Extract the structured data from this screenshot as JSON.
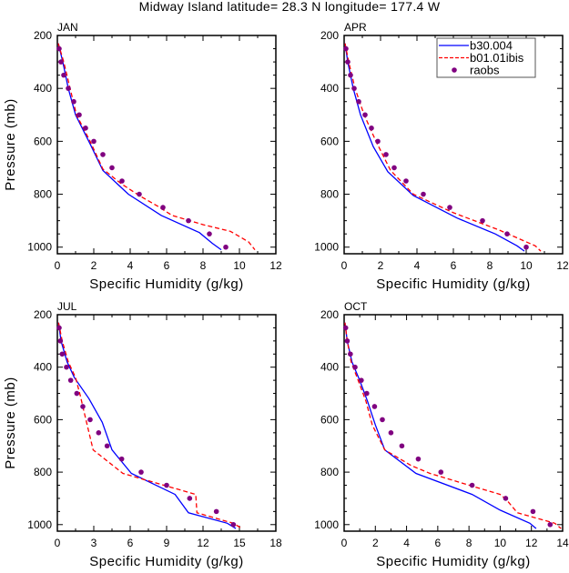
{
  "title": "Midway Island  latitude= 28.3 N longitude= 177.4 W",
  "colors": {
    "b30.004": "#0000ff",
    "b01.01ibis": "#ff0000",
    "raobs": "#800080"
  },
  "legend": {
    "placement": "top-right of APR panel",
    "entries": [
      {
        "label": "b30.004",
        "style": "solid line"
      },
      {
        "label": "b01.01ibis",
        "style": "dashed line"
      },
      {
        "label": "raobs",
        "style": "dot marker"
      }
    ]
  },
  "chart_data": [
    {
      "type": "line",
      "panel_label": "JAN",
      "xlabel": "Specific Humidity (g/kg)",
      "ylabel": "Pressure (mb)",
      "xlim": [
        0,
        12
      ],
      "xticks": [
        0,
        2,
        4,
        6,
        8,
        10,
        12
      ],
      "xminor": 1,
      "ylim": [
        1025,
        200
      ],
      "yticks": [
        200,
        400,
        600,
        800,
        1000
      ],
      "yminor": 50,
      "grid": false,
      "series": [
        {
          "name": "b30.004",
          "kind": "solid",
          "points": [
            [
              0.05,
              230
            ],
            [
              0.3,
              300
            ],
            [
              0.6,
              400
            ],
            [
              1.0,
              500
            ],
            [
              1.8,
              610
            ],
            [
              2.5,
              710
            ],
            [
              3.9,
              800
            ],
            [
              5.7,
              880
            ],
            [
              7.8,
              945
            ],
            [
              8.5,
              985
            ],
            [
              9.0,
              1010
            ]
          ]
        },
        {
          "name": "b01.01ibis",
          "kind": "dashed",
          "points": [
            [
              0.05,
              230
            ],
            [
              0.35,
              300
            ],
            [
              0.7,
              400
            ],
            [
              1.05,
              500
            ],
            [
              1.8,
              600
            ],
            [
              2.5,
              705
            ],
            [
              3.5,
              760
            ],
            [
              4.5,
              805
            ],
            [
              5.5,
              845
            ],
            [
              6.3,
              880
            ],
            [
              8.0,
              915
            ],
            [
              9.5,
              940
            ],
            [
              10.5,
              980
            ],
            [
              10.85,
              1010
            ]
          ]
        },
        {
          "name": "raobs",
          "kind": "markers",
          "points": [
            [
              0.1,
              250
            ],
            [
              0.2,
              300
            ],
            [
              0.35,
              350
            ],
            [
              0.6,
              400
            ],
            [
              0.9,
              450
            ],
            [
              1.2,
              500
            ],
            [
              1.55,
              550
            ],
            [
              2.0,
              600
            ],
            [
              2.5,
              650
            ],
            [
              3.0,
              700
            ],
            [
              3.55,
              750
            ],
            [
              4.5,
              800
            ],
            [
              5.8,
              850
            ],
            [
              7.2,
              900
            ],
            [
              8.35,
              950
            ],
            [
              9.25,
              1000
            ]
          ]
        }
      ]
    },
    {
      "type": "line",
      "panel_label": "APR",
      "xlabel": "Specific Humidity (g/kg)",
      "ylabel": "",
      "xlim": [
        0,
        12
      ],
      "xticks": [
        0,
        2,
        4,
        6,
        8,
        10,
        12
      ],
      "xminor": 1,
      "ylim": [
        1025,
        200
      ],
      "yticks": [
        200,
        400,
        600,
        800,
        1000
      ],
      "yminor": 50,
      "grid": false,
      "series": [
        {
          "name": "b30.004",
          "kind": "solid",
          "points": [
            [
              0.05,
              230
            ],
            [
              0.2,
              300
            ],
            [
              0.5,
              400
            ],
            [
              0.9,
              500
            ],
            [
              1.6,
              620
            ],
            [
              2.4,
              715
            ],
            [
              3.8,
              805
            ],
            [
              6.2,
              890
            ],
            [
              8.3,
              950
            ],
            [
              9.5,
              995
            ],
            [
              9.9,
              1015
            ]
          ]
        },
        {
          "name": "b01.01ibis",
          "kind": "dashed",
          "points": [
            [
              0.05,
              230
            ],
            [
              0.25,
              300
            ],
            [
              0.6,
              400
            ],
            [
              1.1,
              500
            ],
            [
              1.75,
              600
            ],
            [
              2.55,
              710
            ],
            [
              3.8,
              800
            ],
            [
              6.0,
              870
            ],
            [
              8.5,
              935
            ],
            [
              10.5,
              995
            ],
            [
              10.8,
              1015
            ]
          ]
        },
        {
          "name": "raobs",
          "kind": "markers",
          "points": [
            [
              0.1,
              250
            ],
            [
              0.2,
              300
            ],
            [
              0.35,
              350
            ],
            [
              0.55,
              400
            ],
            [
              0.8,
              450
            ],
            [
              1.15,
              500
            ],
            [
              1.5,
              550
            ],
            [
              1.85,
              600
            ],
            [
              2.3,
              650
            ],
            [
              2.75,
              700
            ],
            [
              3.4,
              750
            ],
            [
              4.35,
              800
            ],
            [
              5.8,
              850
            ],
            [
              7.6,
              900
            ],
            [
              8.95,
              950
            ],
            [
              10.0,
              1000
            ]
          ]
        }
      ]
    },
    {
      "type": "line",
      "panel_label": "JUL",
      "xlabel": "Specific Humidity (g/kg)",
      "ylabel": "Pressure (mb)",
      "xlim": [
        0,
        18
      ],
      "xticks": [
        0,
        3,
        6,
        9,
        12,
        15,
        18
      ],
      "xminor": 1.5,
      "ylim": [
        1025,
        200
      ],
      "yticks": [
        200,
        400,
        600,
        800,
        1000
      ],
      "yminor": 50,
      "grid": false,
      "series": [
        {
          "name": "b30.004",
          "kind": "solid",
          "points": [
            [
              0.1,
              230
            ],
            [
              0.3,
              300
            ],
            [
              0.8,
              380
            ],
            [
              1.4,
              440
            ],
            [
              2.6,
              520
            ],
            [
              3.7,
              610
            ],
            [
              4.5,
              715
            ],
            [
              6.1,
              805
            ],
            [
              9.7,
              885
            ],
            [
              10.8,
              955
            ],
            [
              14.0,
              995
            ],
            [
              14.7,
              1015
            ]
          ]
        },
        {
          "name": "b01.01ibis",
          "kind": "dashed",
          "points": [
            [
              0.1,
              230
            ],
            [
              0.4,
              300
            ],
            [
              0.9,
              380
            ],
            [
              1.5,
              440
            ],
            [
              1.9,
              510
            ],
            [
              2.2,
              570
            ],
            [
              2.95,
              715
            ],
            [
              5.4,
              805
            ],
            [
              11.4,
              885
            ],
            [
              11.5,
              955
            ],
            [
              14.5,
              995
            ],
            [
              15.2,
              1015
            ]
          ]
        },
        {
          "name": "raobs",
          "kind": "markers",
          "points": [
            [
              0.15,
              250
            ],
            [
              0.25,
              300
            ],
            [
              0.4,
              350
            ],
            [
              0.75,
              400
            ],
            [
              1.1,
              450
            ],
            [
              1.6,
              500
            ],
            [
              2.1,
              550
            ],
            [
              2.7,
              600
            ],
            [
              3.4,
              650
            ],
            [
              4.1,
              700
            ],
            [
              5.3,
              750
            ],
            [
              6.9,
              800
            ],
            [
              9.0,
              850
            ],
            [
              10.9,
              900
            ],
            [
              13.1,
              950
            ],
            [
              14.5,
              1000
            ]
          ]
        }
      ]
    },
    {
      "type": "line",
      "panel_label": "OCT",
      "xlabel": "Specific Humidity (g/kg)",
      "ylabel": "",
      "xlim": [
        0,
        14
      ],
      "xticks": [
        0,
        2,
        4,
        6,
        8,
        10,
        12,
        14
      ],
      "xminor": 1,
      "ylim": [
        1025,
        200
      ],
      "yticks": [
        200,
        400,
        600,
        800,
        1000
      ],
      "yminor": 50,
      "grid": false,
      "series": [
        {
          "name": "b30.004",
          "kind": "solid",
          "points": [
            [
              0.05,
              230
            ],
            [
              0.2,
              300
            ],
            [
              0.5,
              380
            ],
            [
              1.0,
              450
            ],
            [
              1.5,
              530
            ],
            [
              2.0,
              620
            ],
            [
              2.6,
              715
            ],
            [
              4.6,
              805
            ],
            [
              8.2,
              885
            ],
            [
              10.0,
              945
            ],
            [
              11.9,
              995
            ],
            [
              12.3,
              1015
            ]
          ]
        },
        {
          "name": "b01.01ibis",
          "kind": "dashed",
          "points": [
            [
              0.05,
              230
            ],
            [
              0.2,
              300
            ],
            [
              0.45,
              380
            ],
            [
              0.9,
              450
            ],
            [
              1.4,
              530
            ],
            [
              1.8,
              620
            ],
            [
              2.6,
              715
            ],
            [
              4.3,
              775
            ],
            [
              5.5,
              805
            ],
            [
              8.3,
              855
            ],
            [
              10.0,
              885
            ],
            [
              10.4,
              905
            ],
            [
              11.1,
              955
            ],
            [
              13.5,
              995
            ],
            [
              13.9,
              1015
            ]
          ]
        },
        {
          "name": "raobs",
          "kind": "markers",
          "points": [
            [
              0.1,
              250
            ],
            [
              0.2,
              300
            ],
            [
              0.4,
              350
            ],
            [
              0.7,
              400
            ],
            [
              1.1,
              450
            ],
            [
              1.45,
              500
            ],
            [
              1.95,
              550
            ],
            [
              2.45,
              600
            ],
            [
              3.0,
              650
            ],
            [
              3.7,
              700
            ],
            [
              4.75,
              750
            ],
            [
              6.2,
              800
            ],
            [
              8.2,
              850
            ],
            [
              10.35,
              900
            ],
            [
              12.1,
              950
            ],
            [
              13.2,
              1000
            ]
          ]
        }
      ]
    }
  ]
}
